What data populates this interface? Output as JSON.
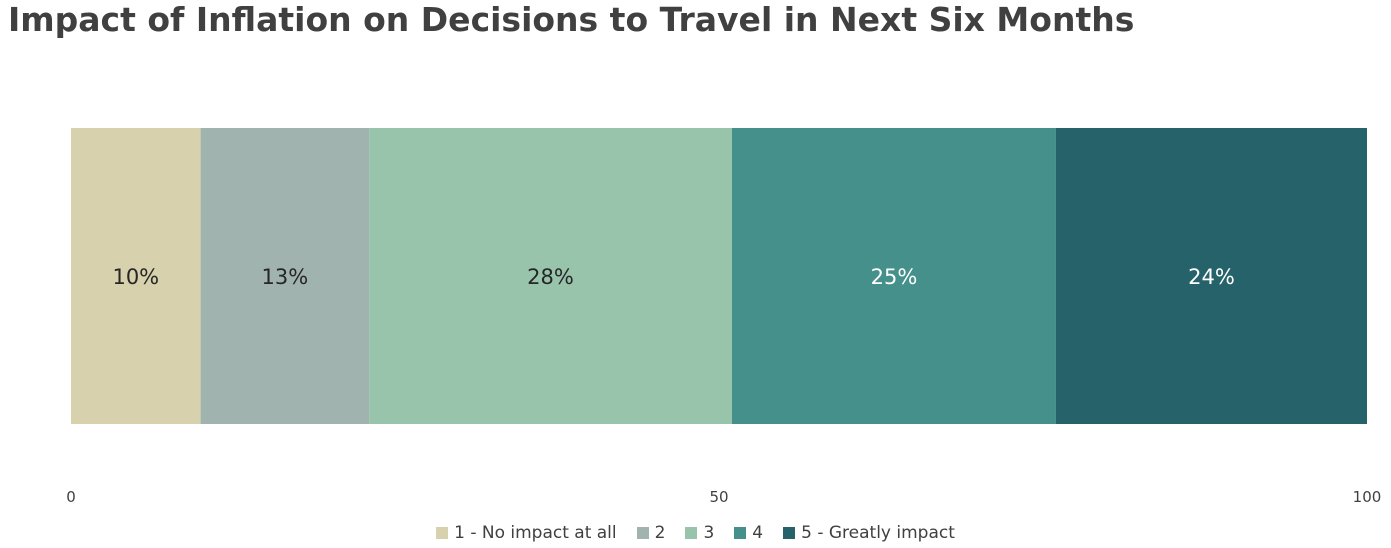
{
  "chart_data": {
    "type": "bar",
    "orientation": "horizontal",
    "stacked": true,
    "title": "Impact of Inflation on Decisions to Travel in Next Six Months",
    "xlim": [
      0,
      100
    ],
    "x_ticks": [
      "0",
      "50",
      "100"
    ],
    "grid": false,
    "legend_position": "bottom",
    "series": [
      {
        "name": "1 - No impact at all",
        "value": 10,
        "label": "10%",
        "color": "#d8d1ad",
        "label_color": "#262626"
      },
      {
        "name": "2",
        "value": 13,
        "label": "13%",
        "color": "#a0b3ae",
        "label_color": "#262626"
      },
      {
        "name": "3",
        "value": 28,
        "label": "28%",
        "color": "#98c4ab",
        "label_color": "#262626"
      },
      {
        "name": "4",
        "value": 25,
        "label": "25%",
        "color": "#45908a",
        "label_color": "#ffffff"
      },
      {
        "name": "5 - Greatly impact",
        "value": 24,
        "label": "24%",
        "color": "#25626a",
        "label_color": "#ffffff"
      }
    ]
  }
}
